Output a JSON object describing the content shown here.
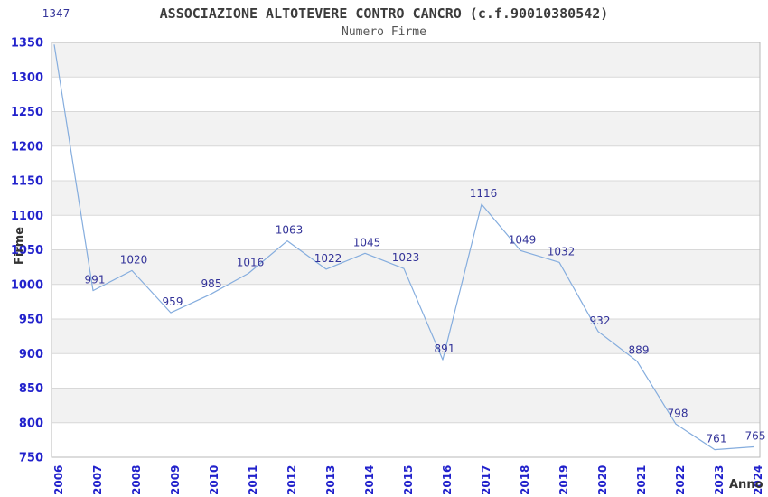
{
  "chart_data": {
    "type": "line",
    "title": "ASSOCIAZIONE ALTOTEVERE CONTRO CANCRO (c.f.90010380542)",
    "subtitle": "Numero Firme",
    "xlabel": "Anno",
    "ylabel": "Firme",
    "x": [
      "2006",
      "2007",
      "2008",
      "2009",
      "2010",
      "2011",
      "2012",
      "2013",
      "2014",
      "2015",
      "2016",
      "2017",
      "2018",
      "2019",
      "2020",
      "2021",
      "2022",
      "2023",
      "2024"
    ],
    "series": [
      {
        "name": "Numero Firme",
        "values": [
          1347,
          991,
          1020,
          959,
          985,
          1016,
          1063,
          1022,
          1045,
          1023,
          891,
          1116,
          1049,
          1032,
          932,
          889,
          798,
          761,
          765
        ]
      }
    ],
    "ylim": [
      750,
      1350
    ],
    "ytick_step": 50,
    "ytick_labels": [
      "750",
      "800",
      "850",
      "900",
      "950",
      "1000",
      "1050",
      "1100",
      "1150",
      "1200",
      "1250",
      "1300",
      "1350"
    ],
    "grid": "horizontal-bands",
    "legend": "none",
    "point_labels": true,
    "colors": {
      "line": "#85ADDE",
      "tick_label": "#2222CC",
      "point_label": "#333399",
      "band_fill": "#F2F2F2",
      "grid_line": "#D8D8D8",
      "plot_border": "#B8B8B8",
      "title_text": "#3C3C3C",
      "subtitle_text": "#555555",
      "axis_title": "#333333",
      "background": "#FFFFFF"
    }
  }
}
